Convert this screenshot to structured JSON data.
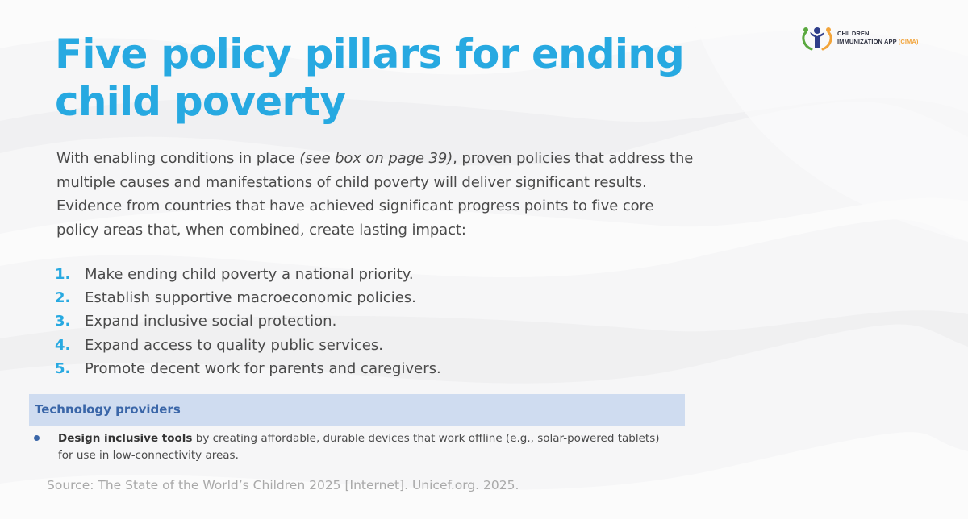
{
  "logo": {
    "line1": "CHILDREN",
    "line2": "IMMUNIZATION APP",
    "line2_accent": "(CIMA)",
    "icon": "children-figure-heart-icon"
  },
  "title": "Five policy pillars for ending child poverty",
  "intro": {
    "before": "With enabling conditions in place ",
    "italic": "(see box on page 39)",
    "after": ", proven policies that address the multiple causes and manifestations of child poverty will deliver significant results. Evidence from countries that have achieved significant progress points to five core policy areas that, when combined, create lasting impact:"
  },
  "pillars": [
    {
      "num": "1.",
      "text": "Make ending child poverty a national priority."
    },
    {
      "num": "2.",
      "text": "Establish supportive macroeconomic policies."
    },
    {
      "num": "3.",
      "text": "Expand inclusive social protection."
    },
    {
      "num": "4.",
      "text": "Expand access to quality public services."
    },
    {
      "num": "5.",
      "text": "Promote decent work for parents and caregivers."
    }
  ],
  "technology": {
    "title": "Technology providers",
    "item_bold": "Design inclusive tools",
    "item_text": " by creating affordable, durable devices that work offline (e.g., solar-powered tablets) for use in low-connectivity areas."
  },
  "source": "Source: The State of the World’s Children 2025 [Internet]. Unicef.org. 2025.",
  "colors": {
    "title_blue": "#27a9e1",
    "tech_header_bg": "#cfdcf0",
    "tech_header_text": "#3a66a8",
    "logo_accent": "#f2a43a"
  }
}
